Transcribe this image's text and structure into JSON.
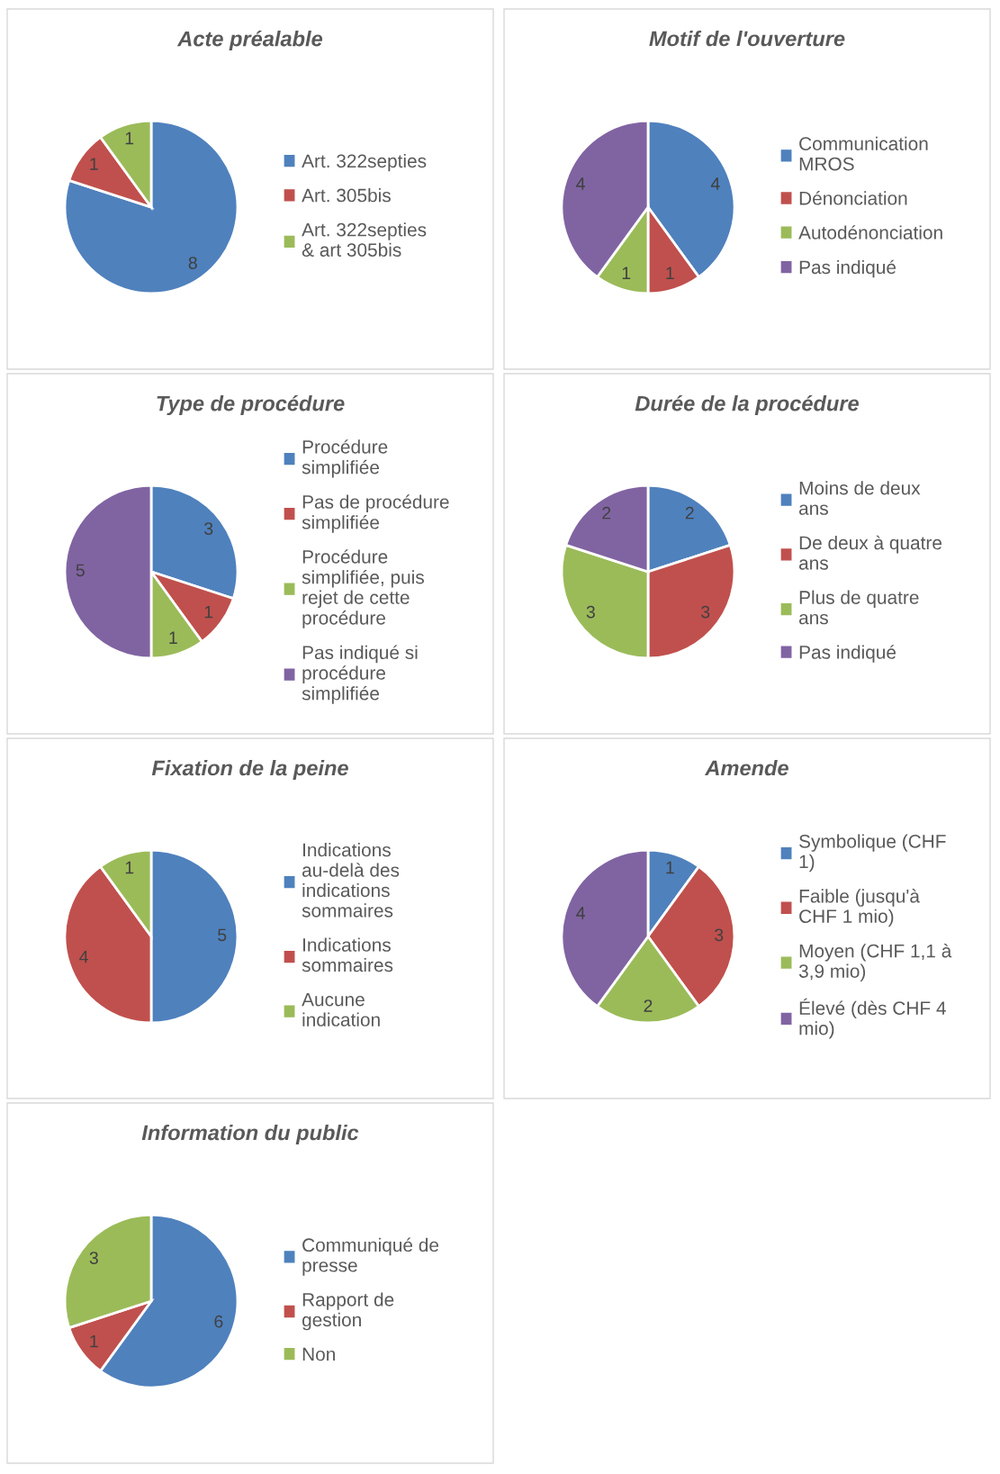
{
  "chart_data": [
    {
      "type": "pie",
      "title": "Acte préalable",
      "categories": [
        "Art. 322septies",
        "Art. 305bis",
        "Art. 322septies & art 305bis"
      ],
      "values": [
        8,
        1,
        1
      ],
      "colors": [
        "#4f81bd",
        "#c0504d",
        "#9bbb59"
      ],
      "data_labels": true,
      "legend": "right"
    },
    {
      "type": "pie",
      "title": "Motif de l'ouverture",
      "categories": [
        "Communication MROS",
        "Dénonciation",
        "Autodénonciation",
        "Pas indiqué"
      ],
      "values": [
        4,
        1,
        1,
        4
      ],
      "colors": [
        "#4f81bd",
        "#c0504d",
        "#9bbb59",
        "#8064a2"
      ],
      "data_labels": true,
      "legend": "right"
    },
    {
      "type": "pie",
      "title": "Type de procédure",
      "categories": [
        "Procédure simplifiée",
        "Pas de procédure simplifiée",
        "Procédure simplifiée, puis rejet de cette procédure",
        "Pas indiqué si procédure simplifiée"
      ],
      "values": [
        3,
        1,
        1,
        5
      ],
      "colors": [
        "#4f81bd",
        "#c0504d",
        "#9bbb59",
        "#8064a2"
      ],
      "data_labels": true,
      "legend": "right"
    },
    {
      "type": "pie",
      "title": "Durée de la procédure",
      "categories": [
        "Moins de deux ans",
        "De deux à quatre ans",
        "Plus de quatre ans",
        "Pas indiqué"
      ],
      "values": [
        2,
        3,
        3,
        2
      ],
      "colors": [
        "#4f81bd",
        "#c0504d",
        "#9bbb59",
        "#8064a2"
      ],
      "data_labels": true,
      "legend": "right"
    },
    {
      "type": "pie",
      "title": "Fixation de la peine",
      "categories": [
        "Indications au-delà des indications sommaires",
        "Indications sommaires",
        "Aucune indication"
      ],
      "values": [
        5,
        4,
        1
      ],
      "colors": [
        "#4f81bd",
        "#c0504d",
        "#9bbb59"
      ],
      "data_labels": true,
      "legend": "right"
    },
    {
      "type": "pie",
      "title": "Amende",
      "categories": [
        "Symbolique (CHF 1)",
        "Faible (jusqu'à CHF 1 mio)",
        "Moyen (CHF 1,1 à 3,9 mio)",
        "Élevé (dès CHF 4 mio)"
      ],
      "values": [
        1,
        3,
        2,
        4
      ],
      "colors": [
        "#4f81bd",
        "#c0504d",
        "#9bbb59",
        "#8064a2"
      ],
      "data_labels": true,
      "legend": "right"
    },
    {
      "type": "pie",
      "title": "Information du public",
      "categories": [
        "Communiqué de presse",
        "Rapport de gestion",
        "Non"
      ],
      "values": [
        6,
        1,
        3
      ],
      "colors": [
        "#4f81bd",
        "#c0504d",
        "#9bbb59"
      ],
      "data_labels": true,
      "legend": "right"
    }
  ]
}
